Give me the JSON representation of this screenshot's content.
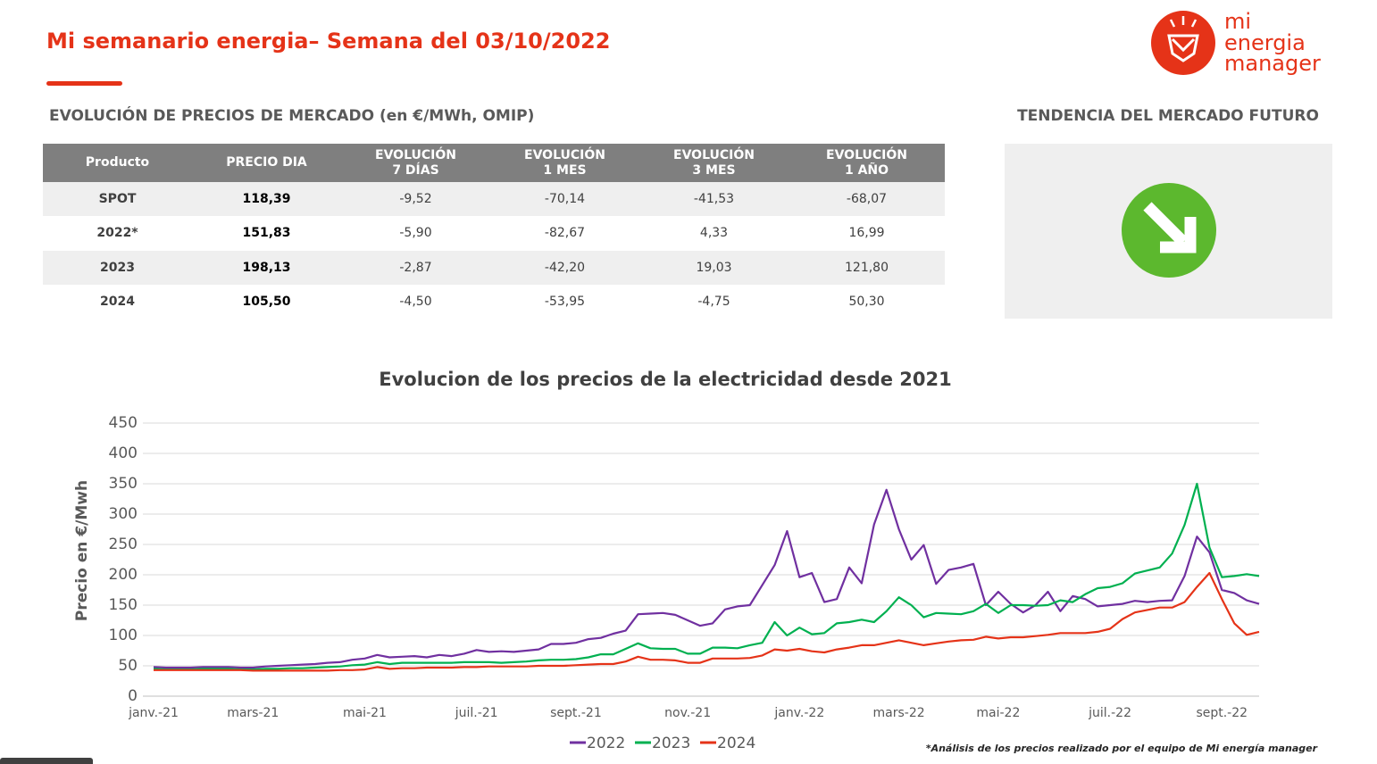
{
  "header": {
    "title": "Mi semanario energia– Semana del 03/10/2022"
  },
  "logo": {
    "lines": [
      "mi",
      "energia",
      "manager"
    ]
  },
  "section": {
    "title": "EVOLUCIÓN DE PRECIOS DE MERCADO (en €/MWh, OMIP)"
  },
  "table": {
    "header": [
      [
        "Producto"
      ],
      [
        "PRECIO DIA"
      ],
      [
        "EVOLUCIÓN",
        "7 DÍAS"
      ],
      [
        "EVOLUCIÓN",
        "1 MES"
      ],
      [
        "EVOLUCIÓN",
        "3 MES"
      ],
      [
        "EVOLUCIÓN",
        "1 AÑO"
      ]
    ],
    "rows": [
      [
        "SPOT",
        "118,39",
        "-9,52",
        "-70,14",
        "-41,53",
        "-68,07"
      ],
      [
        "2022*",
        "151,83",
        "-5,90",
        "-82,67",
        "4,33",
        "16,99"
      ],
      [
        "2023",
        "198,13",
        "-2,87",
        "-42,20",
        "19,03",
        "121,80"
      ],
      [
        "2024",
        "105,50",
        "-4,50",
        "-53,95",
        "-4,75",
        "50,30"
      ]
    ]
  },
  "trend": {
    "title": "TENDENCIA DEL MERCADO FUTURO"
  },
  "footnote": "*Análisis de los precios realizado por el equipo de Mi energía manager",
  "chart_data": {
    "type": "line",
    "title": "Evolucion de los precios de la electricidad desde 2021",
    "y_label": "Precio en €/Mwh",
    "categories": [
      "janv.-21",
      null,
      null,
      null,
      null,
      null,
      null,
      null,
      "mars-21",
      null,
      null,
      null,
      null,
      null,
      null,
      null,
      null,
      "mai-21",
      null,
      null,
      null,
      null,
      null,
      null,
      null,
      null,
      "juil.-21",
      null,
      null,
      null,
      null,
      null,
      null,
      null,
      "sept.-21",
      null,
      null,
      null,
      null,
      null,
      null,
      null,
      null,
      "nov.-21",
      null,
      null,
      null,
      null,
      null,
      null,
      null,
      null,
      "janv.-22",
      null,
      null,
      null,
      null,
      null,
      null,
      null,
      "mars-22",
      null,
      null,
      null,
      null,
      null,
      null,
      null,
      "mai-22",
      null,
      null,
      null,
      null,
      null,
      null,
      null,
      null,
      "juil.-22",
      null,
      null,
      null,
      null,
      null,
      null,
      null,
      null,
      "sept.-22",
      null,
      null,
      null
    ],
    "series": [
      {
        "name": "2022",
        "color": "#7030a0",
        "values": [
          48,
          47,
          47,
          47,
          48,
          48,
          48,
          47,
          47,
          49,
          50,
          51,
          52,
          53,
          55,
          56,
          60,
          62,
          68,
          64,
          65,
          66,
          64,
          68,
          66,
          70,
          76,
          73,
          74,
          73,
          75,
          77,
          86,
          86,
          88,
          94,
          96,
          103,
          108,
          135,
          136,
          137,
          134,
          125,
          116,
          120,
          143,
          148,
          150,
          183,
          216,
          272,
          196,
          203,
          155,
          160,
          212,
          186,
          283,
          340,
          275,
          225,
          249,
          185,
          208,
          212,
          218,
          150,
          172,
          152,
          138,
          150,
          172,
          140,
          165,
          160,
          148,
          150,
          152,
          157,
          155,
          157,
          158,
          198,
          263,
          237,
          175,
          170,
          158,
          152
        ]
      },
      {
        "name": "2023",
        "color": "#00b050",
        "values": [
          45,
          44,
          44,
          44,
          45,
          45,
          45,
          44,
          44,
          45,
          45,
          46,
          46,
          47,
          48,
          49,
          51,
          52,
          56,
          53,
          55,
          55,
          55,
          55,
          55,
          56,
          56,
          56,
          55,
          56,
          57,
          59,
          60,
          60,
          61,
          64,
          69,
          69,
          78,
          87,
          79,
          78,
          78,
          70,
          70,
          80,
          80,
          79,
          84,
          88,
          122,
          100,
          113,
          102,
          104,
          120,
          122,
          126,
          122,
          140,
          163,
          150,
          130,
          137,
          136,
          135,
          140,
          152,
          137,
          150,
          150,
          149,
          150,
          158,
          155,
          168,
          178,
          180,
          186,
          202,
          207,
          212,
          235,
          282,
          350,
          245,
          196,
          198,
          201,
          198
        ]
      },
      {
        "name": "2024",
        "color": "#e53318",
        "values": [
          43,
          43,
          43,
          43,
          43,
          43,
          43,
          43,
          42,
          42,
          42,
          42,
          42,
          42,
          42,
          43,
          43,
          44,
          48,
          45,
          46,
          46,
          47,
          47,
          47,
          48,
          48,
          49,
          49,
          49,
          49,
          50,
          50,
          50,
          51,
          52,
          53,
          53,
          57,
          65,
          60,
          60,
          59,
          55,
          55,
          62,
          62,
          62,
          63,
          67,
          77,
          75,
          78,
          74,
          72,
          77,
          80,
          84,
          84,
          88,
          92,
          88,
          84,
          87,
          90,
          92,
          93,
          98,
          95,
          97,
          97,
          99,
          101,
          104,
          104,
          104,
          106,
          111,
          127,
          138,
          142,
          146,
          146,
          155,
          180,
          203,
          160,
          120,
          101,
          106
        ]
      }
    ],
    "ylim": [
      0,
      450
    ],
    "yticks": [
      0,
      50,
      100,
      150,
      200,
      250,
      300,
      350,
      400,
      450
    ],
    "grid": true
  }
}
